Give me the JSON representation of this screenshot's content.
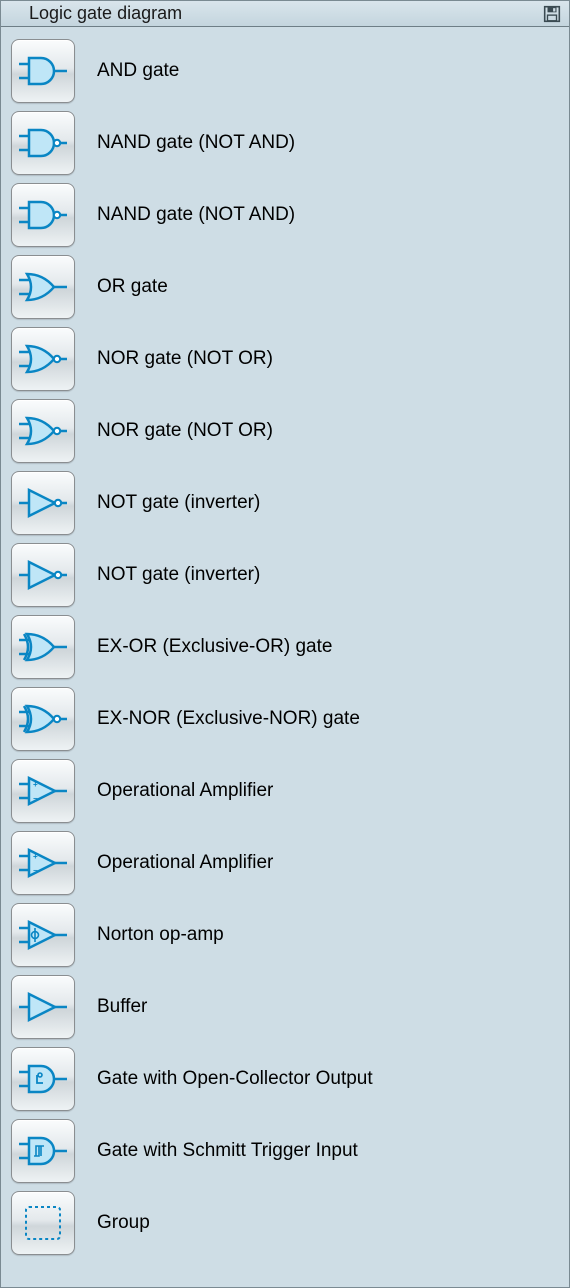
{
  "panel": {
    "title": "Logic gate diagram",
    "background_color": "#cedde5",
    "border_color": "#7a8a92",
    "titlebar_gradient": [
      "#d9e5ec",
      "#c4d5de"
    ],
    "title_fontsize": 18
  },
  "icon_style": {
    "stroke": "#0a86c4",
    "fill": "#bfe6f7",
    "stroke_width": 2.5,
    "button_gradient": [
      "#fafcfd",
      "#e4e9ec",
      "#cfd6da",
      "#eef2f4"
    ],
    "button_border": "#8a8e91",
    "button_radius": 8
  },
  "label_fontsize": 19,
  "items": [
    {
      "id": "and",
      "label": "AND gate",
      "icon": "and-gate-icon"
    },
    {
      "id": "nand-1",
      "label": "NAND gate (NOT AND)",
      "icon": "nand-gate-icon"
    },
    {
      "id": "nand-2",
      "label": "NAND gate (NOT AND)",
      "icon": "nand-gate-icon"
    },
    {
      "id": "or",
      "label": "OR gate",
      "icon": "or-gate-icon"
    },
    {
      "id": "nor-1",
      "label": "NOR gate (NOT OR)",
      "icon": "nor-gate-icon"
    },
    {
      "id": "nor-2",
      "label": "NOR gate (NOT OR)",
      "icon": "nor-gate-icon"
    },
    {
      "id": "not-1",
      "label": "NOT gate (inverter)",
      "icon": "not-gate-icon"
    },
    {
      "id": "not-2",
      "label": "NOT gate (inverter)",
      "icon": "not-gate-icon"
    },
    {
      "id": "xor",
      "label": "EX-OR (Exclusive-OR) gate",
      "icon": "xor-gate-icon"
    },
    {
      "id": "xnor",
      "label": "EX-NOR (Exclusive-NOR) gate",
      "icon": "xnor-gate-icon"
    },
    {
      "id": "opamp-1",
      "label": "Operational Amplifier",
      "icon": "opamp-icon"
    },
    {
      "id": "opamp-2",
      "label": "Operational Amplifier",
      "icon": "opamp-icon"
    },
    {
      "id": "norton",
      "label": "Norton op-amp",
      "icon": "norton-opamp-icon"
    },
    {
      "id": "buffer",
      "label": "Buffer",
      "icon": "buffer-icon"
    },
    {
      "id": "open-coll",
      "label": "Gate with Open-Collector Output",
      "icon": "open-collector-gate-icon"
    },
    {
      "id": "schmitt",
      "label": "Gate with Schmitt Trigger Input",
      "icon": "schmitt-trigger-gate-icon"
    },
    {
      "id": "group",
      "label": "Group",
      "icon": "group-icon"
    }
  ]
}
